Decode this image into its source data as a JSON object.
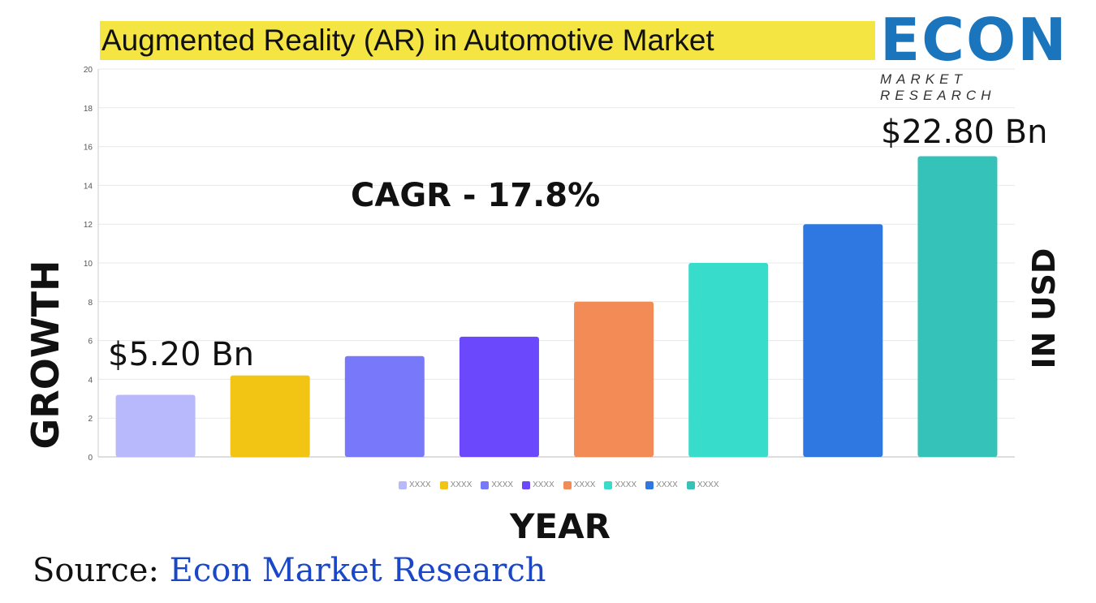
{
  "title": "Augmented Reality (AR) in Automotive Market",
  "logo": {
    "main": "ECON",
    "sub": "MARKET RESEARCH"
  },
  "chart_data": {
    "type": "bar",
    "categories": [
      "XXXX",
      "XXXX",
      "XXXX",
      "XXXX",
      "XXXX",
      "XXXX",
      "XXXX",
      "XXXX"
    ],
    "values": [
      3.2,
      4.2,
      5.2,
      6.2,
      8,
      10,
      12,
      15.5
    ],
    "colors": [
      "#b8b8fc",
      "#f2c414",
      "#7878fa",
      "#6c48fc",
      "#f28b55",
      "#38dccb",
      "#2f78e1",
      "#35c2b8"
    ],
    "ylim": [
      0,
      20
    ],
    "yticks": [
      "0",
      "2",
      "4",
      "6",
      "8",
      "10",
      "12",
      "14",
      "16",
      "18",
      "20"
    ],
    "xlabel": "YEAR",
    "ylabel": "GROWTH",
    "ylabel_right": "IN USD",
    "annotations": {
      "cagr": "CAGR - 17.8%",
      "start": "$5.20 Bn",
      "end": "$22.80 Bn"
    },
    "grid": true,
    "legend": "bottom"
  },
  "source": {
    "label": "Source:",
    "value": " Econ Market Research"
  }
}
